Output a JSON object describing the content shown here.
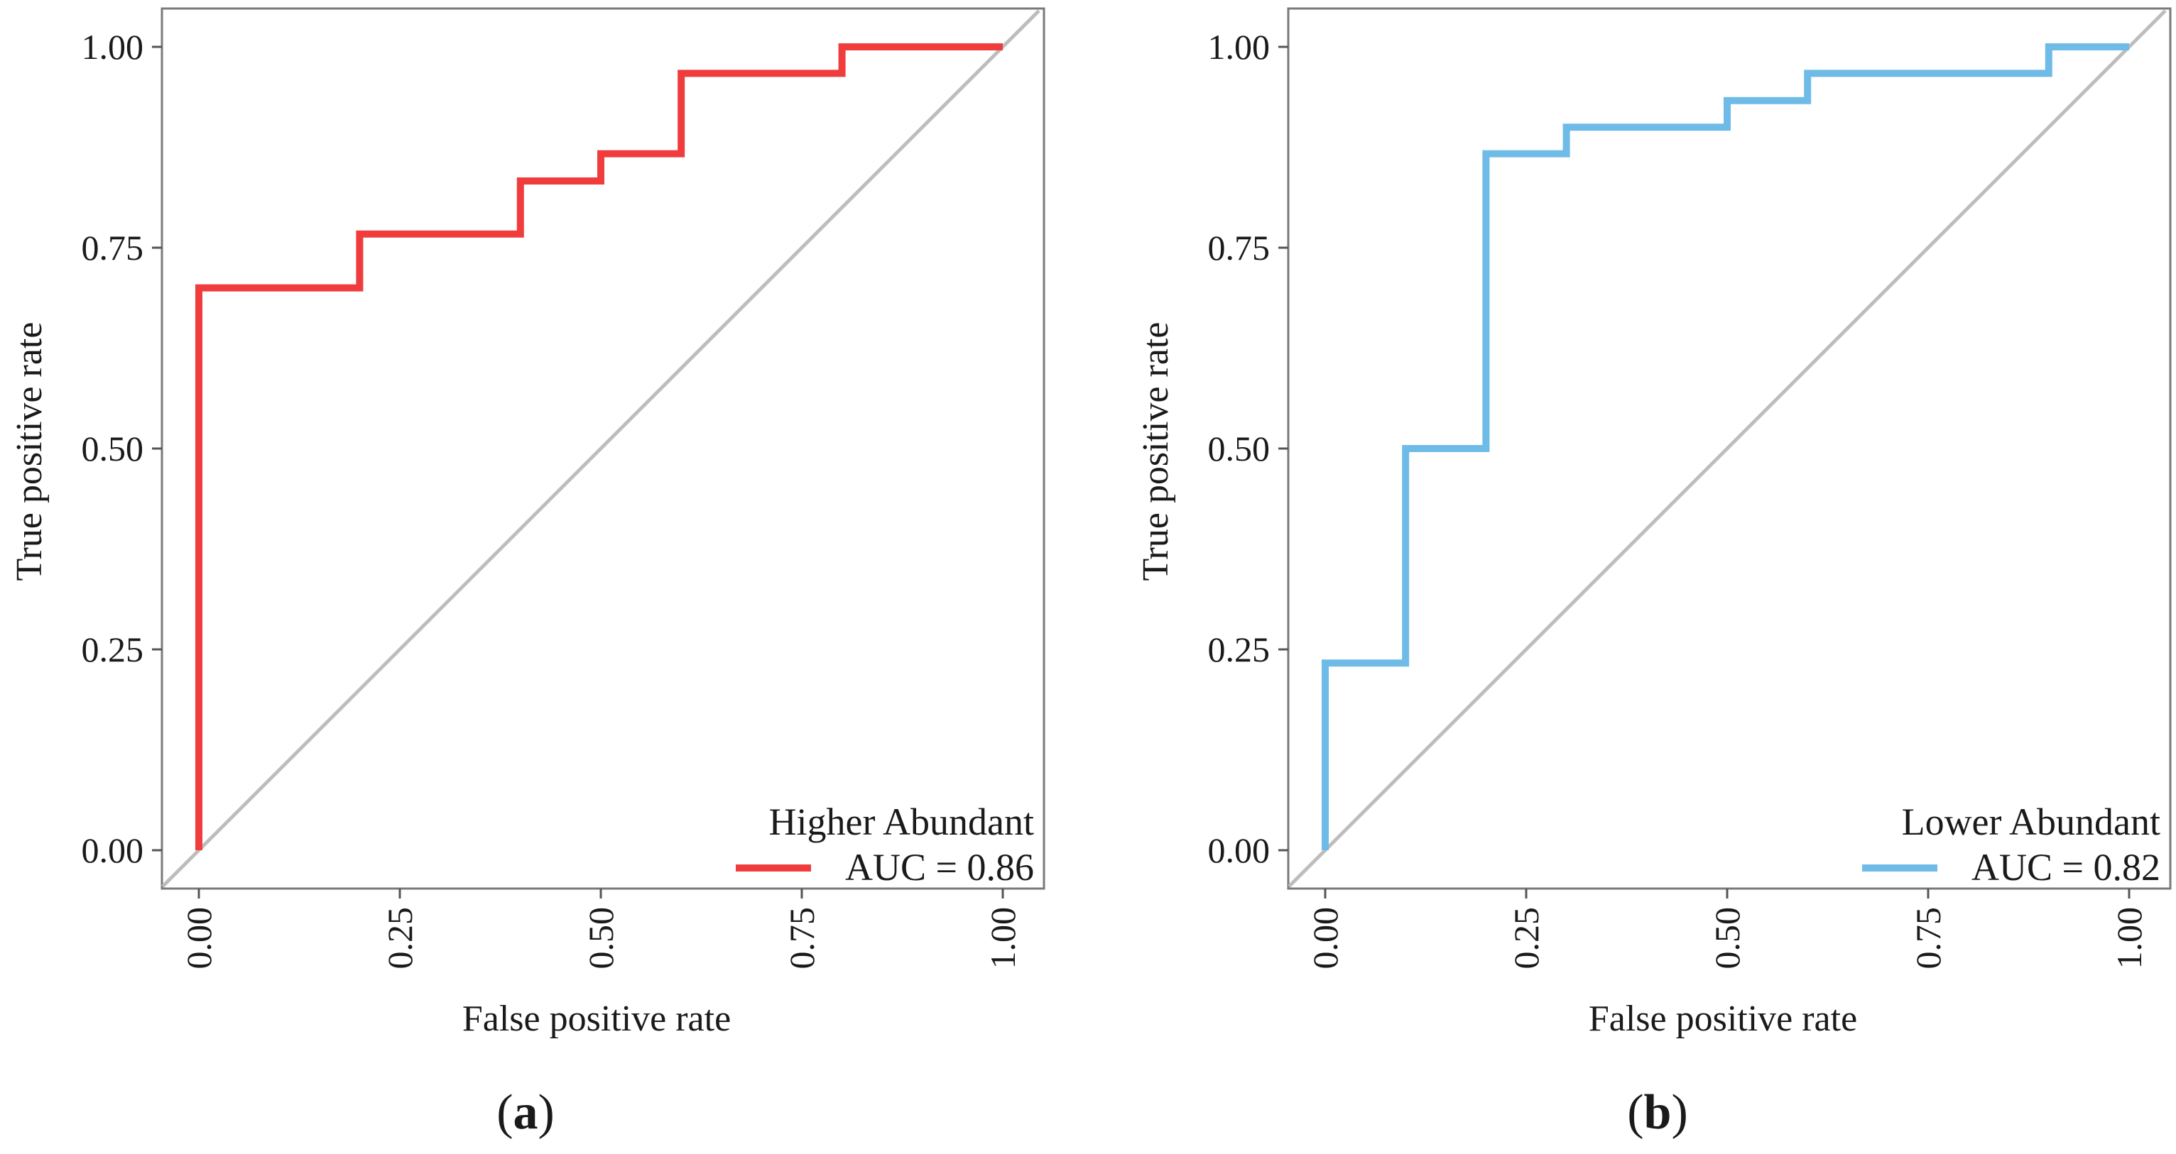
{
  "chart_data": [
    {
      "type": "line",
      "panel_label": "a",
      "title": "",
      "xlabel": "False positive rate",
      "ylabel": "True positive rate",
      "xlim": [
        0,
        1
      ],
      "ylim": [
        0,
        1
      ],
      "x_ticks": [
        "0.00",
        "0.25",
        "0.50",
        "0.75",
        "1.00"
      ],
      "y_ticks": [
        "0.00",
        "0.25",
        "0.50",
        "0.75",
        "1.00"
      ],
      "grid": false,
      "reference_line": {
        "name": "chance diagonal",
        "color": "#bdbdbd",
        "x": [
          0,
          1
        ],
        "y": [
          0,
          1
        ]
      },
      "legend": {
        "title": "Higher Abundant",
        "placement": "bottom-right"
      },
      "series": [
        {
          "name": "AUC = 0.86",
          "color": "#f03c3c",
          "x": [
            0.0,
            0.0,
            0.2,
            0.2,
            0.4,
            0.4,
            0.5,
            0.5,
            0.6,
            0.6,
            0.8,
            0.8,
            1.0
          ],
          "y": [
            0.0,
            0.7,
            0.7,
            0.767,
            0.767,
            0.833,
            0.833,
            0.867,
            0.867,
            0.967,
            0.967,
            1.0,
            1.0
          ]
        }
      ]
    },
    {
      "type": "line",
      "panel_label": "b",
      "title": "",
      "xlabel": "False positive rate",
      "ylabel": "True positive rate",
      "xlim": [
        0,
        1
      ],
      "ylim": [
        0,
        1
      ],
      "x_ticks": [
        "0.00",
        "0.25",
        "0.50",
        "0.75",
        "1.00"
      ],
      "y_ticks": [
        "0.00",
        "0.25",
        "0.50",
        "0.75",
        "1.00"
      ],
      "grid": false,
      "reference_line": {
        "name": "chance diagonal",
        "color": "#bdbdbd",
        "x": [
          0,
          1
        ],
        "y": [
          0,
          1
        ]
      },
      "legend": {
        "title": "Lower Abundant",
        "placement": "bottom-right"
      },
      "series": [
        {
          "name": "AUC = 0.82",
          "color": "#6fbbe8",
          "x": [
            0.0,
            0.0,
            0.1,
            0.1,
            0.2,
            0.2,
            0.3,
            0.3,
            0.5,
            0.5,
            0.6,
            0.6,
            0.9,
            0.9,
            1.0
          ],
          "y": [
            0.0,
            0.233,
            0.233,
            0.5,
            0.5,
            0.867,
            0.867,
            0.9,
            0.9,
            0.933,
            0.933,
            0.967,
            0.967,
            1.0,
            1.0
          ]
        }
      ]
    }
  ]
}
